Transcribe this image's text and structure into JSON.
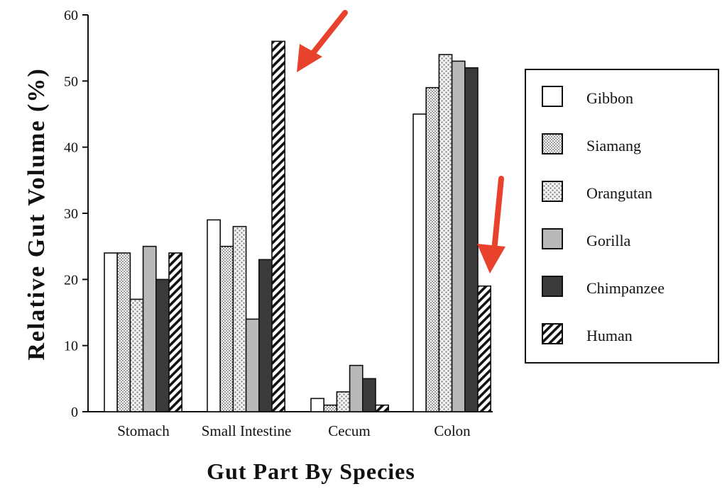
{
  "chart_data": {
    "type": "bar",
    "title": "",
    "xlabel": "Gut Part By Species",
    "ylabel": "Relative Gut Volume (%)",
    "ylim": [
      0,
      60
    ],
    "yticks": [
      0,
      10,
      20,
      30,
      40,
      50,
      60
    ],
    "categories": [
      "Stomach",
      "Small Intestine",
      "Cecum",
      "Colon"
    ],
    "series": [
      {
        "name": "Gibbon",
        "pattern": "white",
        "values": [
          24,
          29,
          2,
          45
        ]
      },
      {
        "name": "Siamang",
        "pattern": "fine-dots",
        "values": [
          24,
          25,
          1,
          49
        ]
      },
      {
        "name": "Orangutan",
        "pattern": "coarse-dots",
        "values": [
          17,
          28,
          3,
          54
        ]
      },
      {
        "name": "Gorilla",
        "pattern": "light-gray",
        "values": [
          25,
          14,
          7,
          53
        ]
      },
      {
        "name": "Chimpanzee",
        "pattern": "dark-gray",
        "values": [
          20,
          23,
          5,
          52
        ]
      },
      {
        "name": "Human",
        "pattern": "hatch",
        "values": [
          24,
          56,
          1,
          19
        ]
      }
    ],
    "legend_position": "right",
    "annotations": [
      {
        "type": "arrow",
        "color": "#e8412c",
        "points_to": "Human, Small Intestine"
      },
      {
        "type": "arrow",
        "color": "#e8412c",
        "points_to": "Human, Colon"
      }
    ]
  }
}
